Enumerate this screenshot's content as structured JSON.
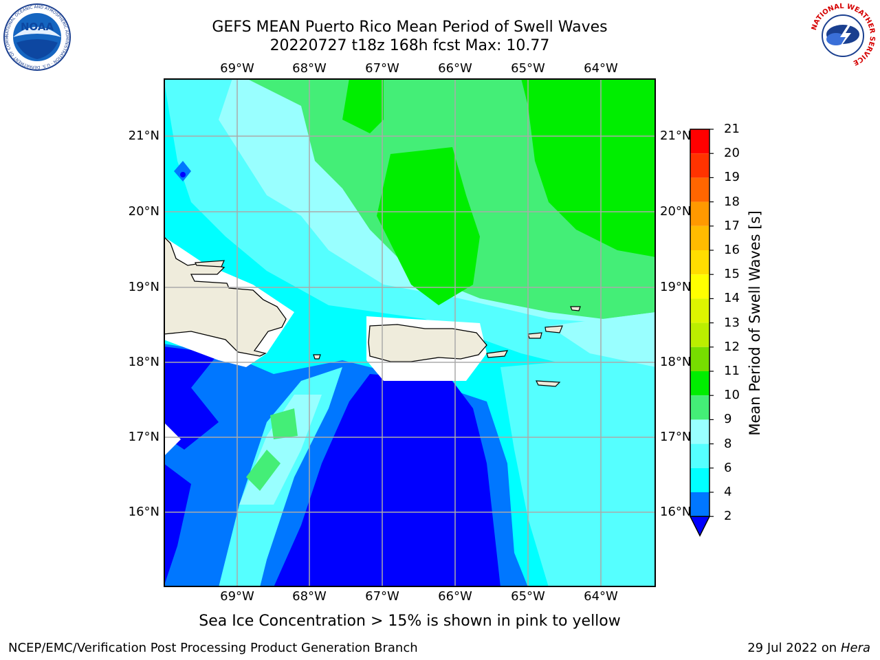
{
  "title": {
    "line1": "GEFS MEAN Puerto Rico Mean Period of Swell Waves",
    "line2": "20220727 t18z 168h fcst   Max: 10.77"
  },
  "map": {
    "lon_labels": [
      "69°W",
      "68°W",
      "67°W",
      "66°W",
      "65°W",
      "64°W"
    ],
    "lat_labels": [
      "21°N",
      "20°N",
      "19°N",
      "18°N",
      "17°N",
      "16°N"
    ],
    "extent": {
      "lon_min": -70.0,
      "lon_max": -63.25,
      "lat_min": 15.0,
      "lat_max": 21.75
    },
    "max_value": 10.77
  },
  "colorbar": {
    "title": "Mean Period of Swell Waves [s]",
    "ticks": [
      "21",
      "20",
      "19",
      "18",
      "17",
      "16",
      "15",
      "14",
      "13",
      "12",
      "11",
      "10",
      "9",
      "8",
      "6",
      "4",
      "2"
    ],
    "colors": [
      "#ff0000",
      "#ff3300",
      "#ff6600",
      "#ff9900",
      "#ffbb00",
      "#ffdd00",
      "#ffff00",
      "#ddf500",
      "#bbee00",
      "#77dd00",
      "#00ee00",
      "#44ee77",
      "#99ffff",
      "#55ffff",
      "#00ffff",
      "#0077ff",
      "#0000ff"
    ],
    "extend": "min"
  },
  "caption": "Sea Ice Concentration > 15% is shown in pink to yellow",
  "footer": {
    "left": "NCEP/EMC/Verification Post Processing Product Generation Branch",
    "date": "29 Jul 2022 on ",
    "host": "Hera"
  },
  "logos": {
    "noaa_text": "NOAA",
    "noaa_ring": "NATIONAL OCEANIC AND ATMOSPHERIC ADMINISTRATION · U.S. DEPARTMENT OF COMMERCE",
    "nws_ring": "NATIONAL WEATHER SERVICE"
  },
  "palette": {
    "land": "#efecdc",
    "grid": "#aaaaaa",
    "band_2_4": "#0000ff",
    "band_4_6": "#0077ff",
    "band_6_8": "#00ffff",
    "band_8_9": "#55ffff",
    "band_9_10": "#99ffff",
    "band_10_11": "#44ee77",
    "band_11_12": "#00ee00"
  }
}
